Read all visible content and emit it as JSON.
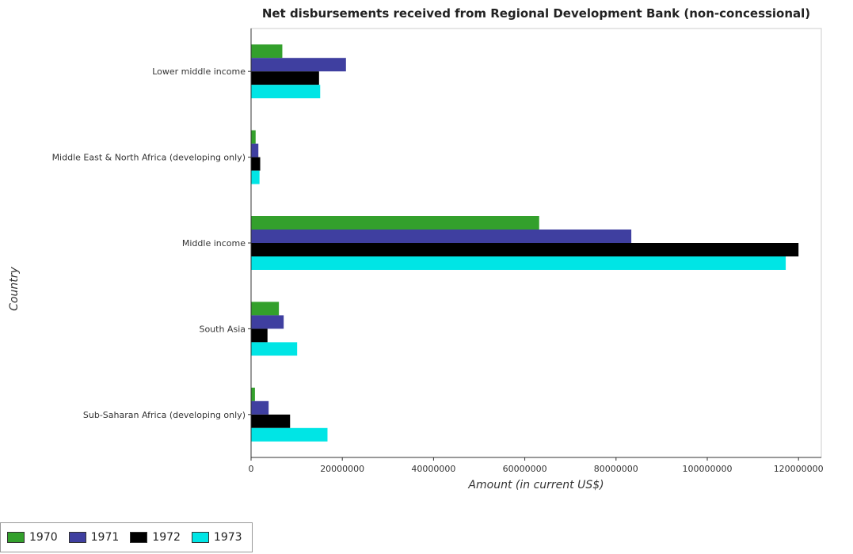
{
  "title": "Net disbursements received from Regional Development Bank (non-concessional)",
  "chart_data": {
    "type": "bar",
    "orientation": "horizontal",
    "title": "Net disbursements received from Regional Development Bank (non-concessional)",
    "xlabel": "Amount (in current US$)",
    "ylabel": "Country",
    "xlim": [
      0,
      125000000
    ],
    "xticks": [
      0,
      20000000,
      40000000,
      60000000,
      80000000,
      100000000,
      120000000
    ],
    "xtick_labels": [
      "0",
      "20000000",
      "40000000",
      "60000000",
      "80000000",
      "100000000",
      "120000000"
    ],
    "categories": [
      "Lower middle income",
      "Middle East & North Africa (developing only)",
      "Middle income",
      "South Asia",
      "Sub-Saharan Africa (developing only)"
    ],
    "series": [
      {
        "name": "1970",
        "color": "#33a02c",
        "values": [
          6850000,
          1000000,
          63150000,
          6100000,
          850000
        ]
      },
      {
        "name": "1971",
        "color": "#3f3fa0",
        "values": [
          20800000,
          1600000,
          83350000,
          7150000,
          3850000
        ]
      },
      {
        "name": "1972",
        "color": "#000000",
        "values": [
          14900000,
          2000000,
          120000000,
          3600000,
          8550000
        ]
      },
      {
        "name": "1973",
        "color": "#00e5e5",
        "values": [
          15150000,
          1850000,
          117200000,
          10100000,
          16750000
        ]
      }
    ],
    "legend_position": "bottom-left",
    "grid": false
  }
}
